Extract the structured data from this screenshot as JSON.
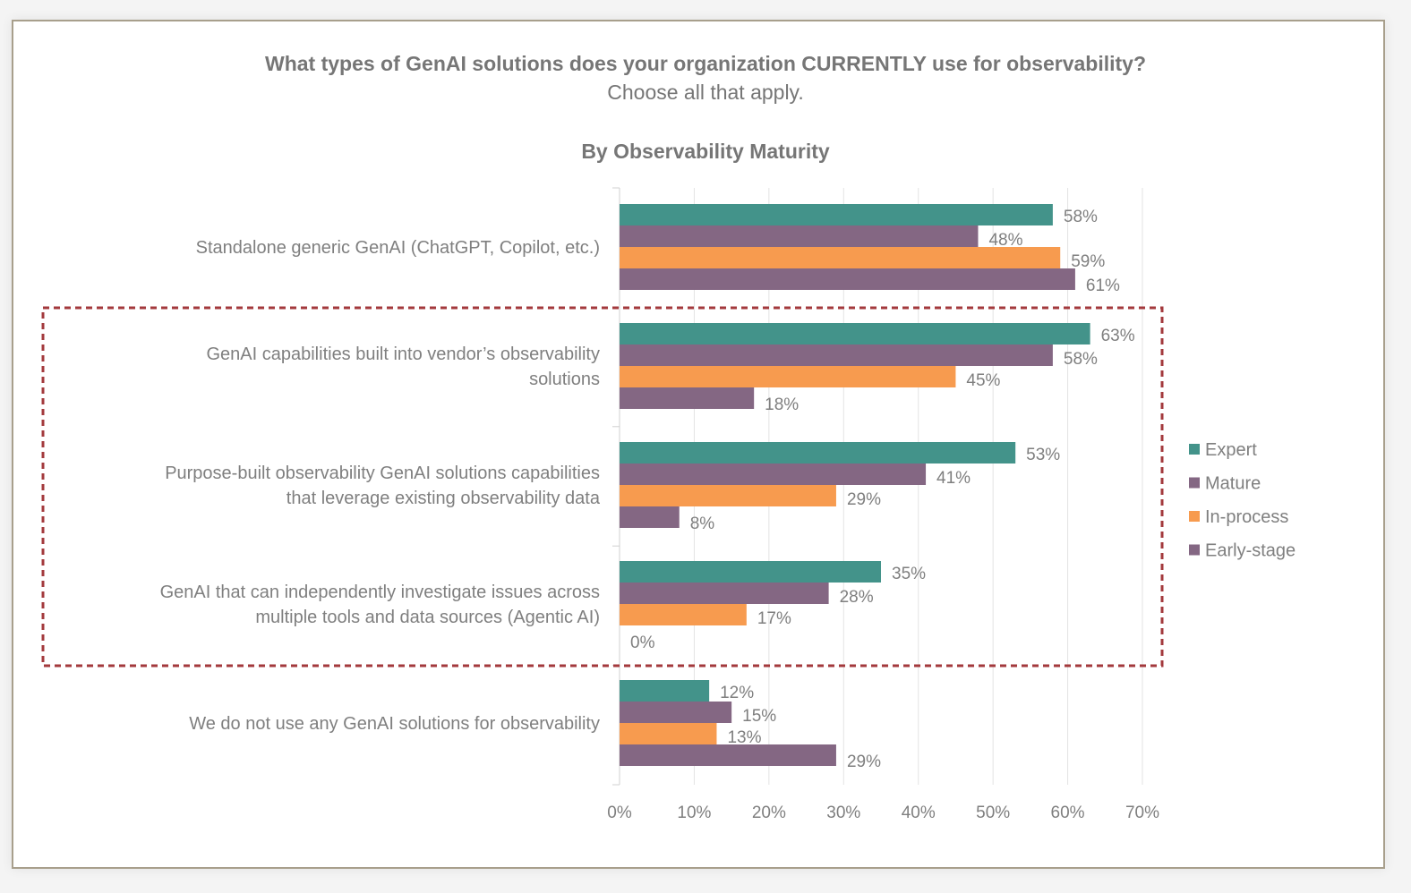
{
  "chart_data": {
    "type": "bar",
    "orientation": "horizontal",
    "title": "What types of GenAI solutions does your organization CURRENTLY use for observability?",
    "subtitle": "Choose all that apply.",
    "chart_title": "By Observability Maturity",
    "categories": [
      [
        "Standalone generic GenAI (ChatGPT, Copilot, etc.)"
      ],
      [
        "GenAI capabilities built into vendor’s observability",
        "solutions"
      ],
      [
        "Purpose-built observability GenAI solutions capabilities",
        "that leverage existing observability data"
      ],
      [
        "GenAI that can independently investigate issues across",
        "multiple tools and data sources (Agentic AI)"
      ],
      [
        "We do not use any GenAI solutions for observability"
      ]
    ],
    "series": [
      {
        "name": "Expert",
        "color": "#43938a",
        "values": [
          58,
          63,
          53,
          35,
          12
        ]
      },
      {
        "name": "Mature",
        "color": "#846783",
        "values": [
          48,
          58,
          41,
          28,
          15
        ]
      },
      {
        "name": "In-process",
        "color": "#f79b4f",
        "values": [
          59,
          45,
          29,
          17,
          13
        ]
      },
      {
        "name": "Early-stage",
        "color": "#846783",
        "values": [
          61,
          18,
          8,
          0,
          29
        ]
      }
    ],
    "xlim": [
      0,
      70
    ],
    "xticks": [
      "0%",
      "10%",
      "20%",
      "30%",
      "40%",
      "50%",
      "60%",
      "70%"
    ],
    "grid": true,
    "legend": "right",
    "highlight": {
      "type": "dashed-box",
      "color": "#a3393c",
      "categories": [
        1,
        2,
        3
      ]
    }
  }
}
